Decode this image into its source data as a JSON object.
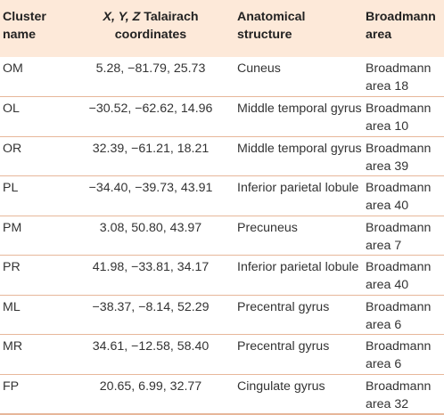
{
  "table": {
    "headers": {
      "cluster": "Cluster name",
      "coords_axes": "X, Y, Z",
      "coords_rest": " Talairach coordinates",
      "structure": "Anatomical structure",
      "area": "Broadmann area"
    },
    "rows": [
      {
        "cluster": "OM",
        "coords": "5.28, −81.79, 25.73",
        "structure": "Cuneus",
        "area": "Broadmann area 18"
      },
      {
        "cluster": "OL",
        "coords": "−30.52, −62.62, 14.96",
        "structure": "Middle temporal gyrus",
        "area": "Broadmann area 10"
      },
      {
        "cluster": "OR",
        "coords": "32.39, −61.21, 18.21",
        "structure": "Middle temporal gyrus",
        "area": "Broadmann area 39"
      },
      {
        "cluster": "PL",
        "coords": "−34.40, −39.73, 43.91",
        "structure": "Inferior parietal lobule",
        "area": "Broadmann area 40"
      },
      {
        "cluster": "PM",
        "coords": "3.08, 50.80, 43.97",
        "structure": "Precuneus",
        "area": "Broadmann area 7"
      },
      {
        "cluster": "PR",
        "coords": "41.98, −33.81, 34.17",
        "structure": "Inferior parietal lobule",
        "area": "Broadmann area 40"
      },
      {
        "cluster": "ML",
        "coords": "−38.37, −8.14, 52.29",
        "structure": "Precentral gyrus",
        "area": "Broadmann area 6"
      },
      {
        "cluster": "MR",
        "coords": "34.61, −12.58, 58.40",
        "structure": "Precentral gyrus",
        "area": "Broadmann area 6"
      },
      {
        "cluster": "FP",
        "coords": "20.65, 6.99, 32.77",
        "structure": "Cingulate gyrus",
        "area": "Broadmann area 32"
      }
    ]
  }
}
